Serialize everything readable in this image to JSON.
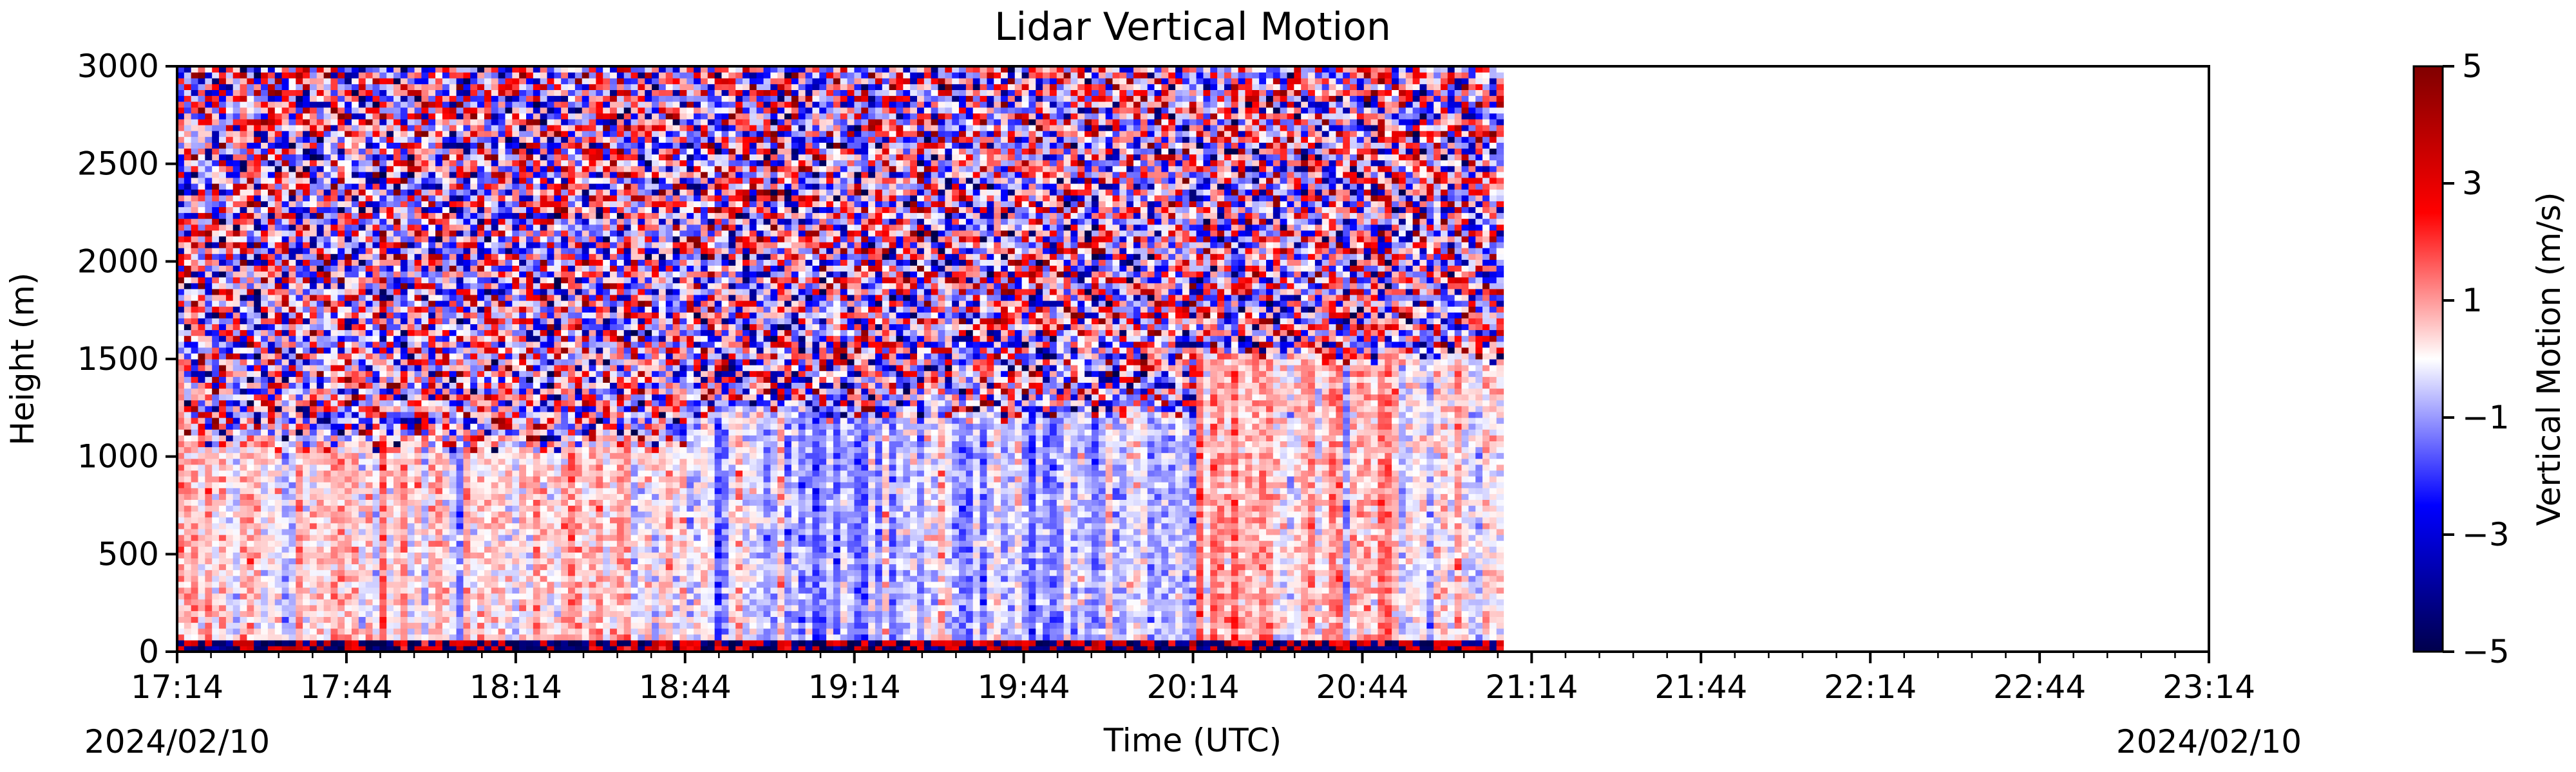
{
  "chart_data": {
    "type": "heatmap",
    "title": "Lidar Vertical Motion",
    "xlabel": "Time (UTC)",
    "ylabel": "Height (m)",
    "x_ticks": [
      "17:14",
      "17:44",
      "18:14",
      "18:44",
      "19:14",
      "19:44",
      "20:14",
      "20:44",
      "21:14",
      "21:44",
      "22:14",
      "22:44",
      "23:14"
    ],
    "x_range_hours": [
      17.2333,
      23.2333
    ],
    "data_end_time": "21:09",
    "date_left": "2024/02/10",
    "date_right": "2024/02/10",
    "y_ticks": [
      0,
      500,
      1000,
      1500,
      2000,
      2500,
      3000
    ],
    "ylim": [
      0,
      3000
    ],
    "colorbar": {
      "label": "Vertical Motion (m/s)",
      "ticks": [
        "5",
        "3",
        "1",
        "−1",
        "−3",
        "−5"
      ],
      "tick_values": [
        5,
        3,
        1,
        -1,
        -3,
        -5
      ],
      "range": [
        -5,
        5
      ],
      "colormap": "seismic",
      "colors": [
        "#00004c",
        "#0000ff",
        "#ffffff",
        "#ff0000",
        "#800000"
      ]
    },
    "regions": [
      {
        "description": "near-surface layer, weak mixed motion",
        "height_range": [
          0,
          1050
        ],
        "time_range": [
          "17:14",
          "18:44"
        ],
        "mean_w": 0.3
      },
      {
        "description": "mixed layer with downdrafts",
        "height_range": [
          0,
          1200
        ],
        "time_range": [
          "18:44",
          "20:14"
        ],
        "mean_w": -0.6
      },
      {
        "description": "deepening mixed layer",
        "height_range": [
          0,
          1500
        ],
        "time_range": [
          "20:14",
          "21:09"
        ],
        "mean_w": 0.4
      },
      {
        "description": "noise above boundary layer",
        "height_range": [
          1050,
          3000
        ],
        "time_range": [
          "17:14",
          "21:09"
        ],
        "mean_w": 0
      }
    ]
  }
}
